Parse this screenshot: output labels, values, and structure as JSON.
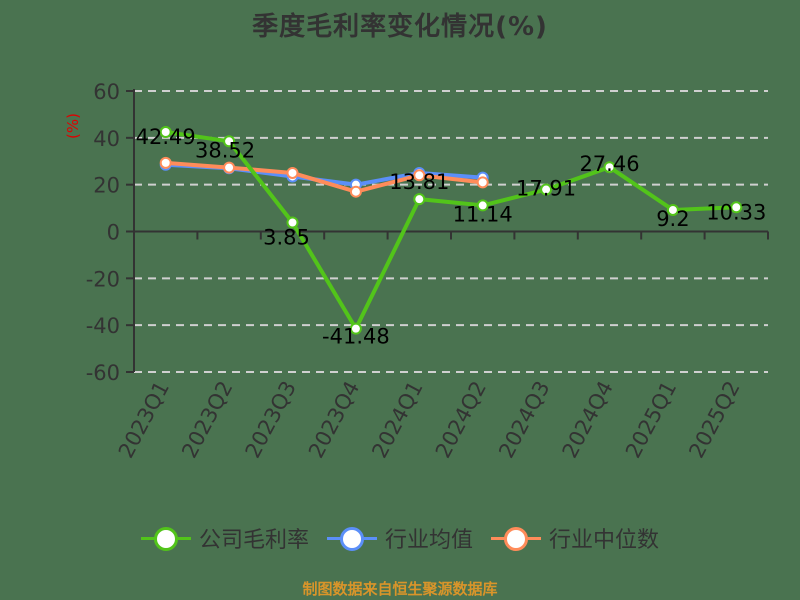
{
  "title": "季度毛利率变化情况(%)",
  "source": "制图数据来自恒生聚源数据库",
  "legend": [
    {
      "label": "公司毛利率",
      "color": "#52c41a"
    },
    {
      "label": "行业均值",
      "color": "#5b8ff9"
    },
    {
      "label": "行业中位数",
      "color": "#ff8c5a"
    }
  ],
  "chart_data": {
    "type": "line",
    "title": "季度毛利率变化情况(%)",
    "xlabel": "",
    "ylabel": "(%)",
    "ylim": [
      -60,
      60
    ],
    "yticks": [
      60,
      40,
      20,
      0,
      -20,
      -40,
      -60
    ],
    "grid": "horizontal dashed",
    "legend_position": "bottom",
    "categories": [
      "2023Q1",
      "2023Q2",
      "2023Q3",
      "2023Q4",
      "2024Q1",
      "2024Q2",
      "2024Q3",
      "2024Q4",
      "2025Q1",
      "2025Q2"
    ],
    "series": [
      {
        "name": "公司毛利率",
        "color": "#52c41a",
        "values": [
          42.49,
          38.52,
          3.85,
          -41.48,
          13.81,
          11.14,
          17.91,
          27.46,
          9.2,
          10.33
        ],
        "labels": [
          "42.49",
          "38.52",
          "3.85",
          "-41.48",
          "13.81",
          "11.14",
          "17.91",
          "27.46",
          "9.2",
          "10.33"
        ]
      },
      {
        "name": "行业均值",
        "color": "#5b8ff9",
        "values": [
          28.5,
          27.0,
          23.5,
          20.0,
          25.0,
          23.0,
          null,
          null,
          null,
          null
        ]
      },
      {
        "name": "行业中位数",
        "color": "#ff8c5a",
        "values": [
          29.3,
          27.3,
          25.0,
          17.0,
          24.0,
          21.0,
          null,
          null,
          null,
          null
        ]
      }
    ]
  }
}
